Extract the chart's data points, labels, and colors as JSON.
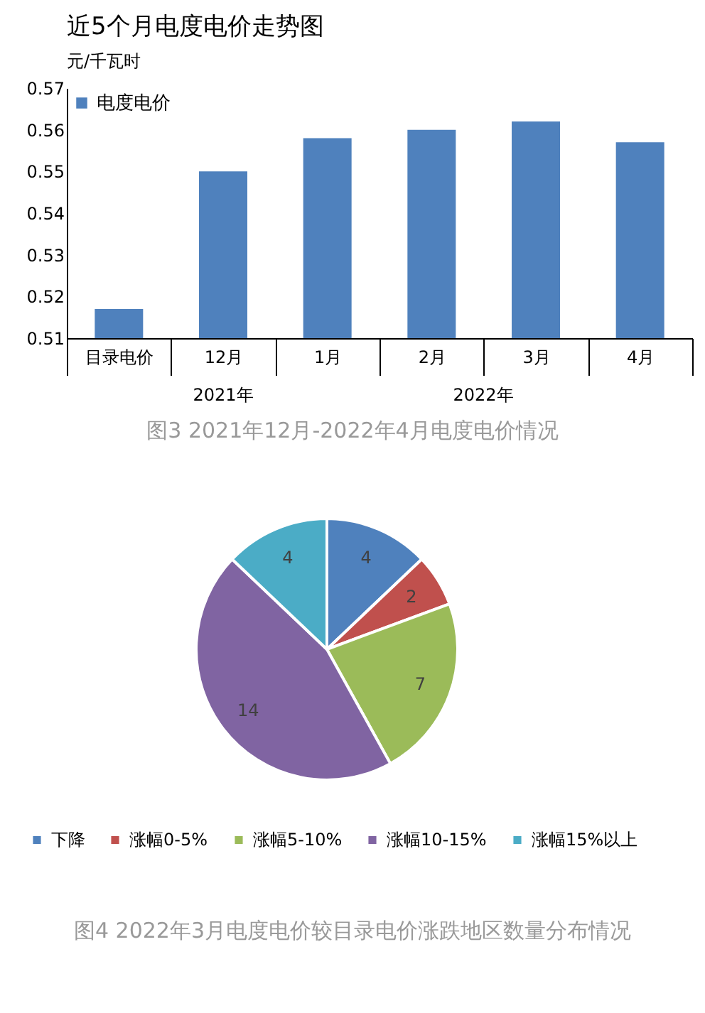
{
  "chart_data": [
    {
      "type": "bar",
      "title": "近5个月电度电价走势图",
      "ylabel": "元/千瓦时",
      "categories": [
        "目录电价",
        "12月",
        "1月",
        "2月",
        "3月",
        "4月"
      ],
      "series": [
        {
          "name": "电度电价",
          "color": "#4f81bd",
          "values": [
            0.517,
            0.55,
            0.558,
            0.56,
            0.562,
            0.557
          ]
        }
      ],
      "ylim": [
        0.51,
        0.57
      ],
      "yticks": [
        0.51,
        0.52,
        0.53,
        0.54,
        0.55,
        0.56,
        0.57
      ],
      "legend": "top left",
      "annotations": [
        "2021年",
        "2022年",
        "图3 2021年12月-2022年4月电度电价情况"
      ]
    },
    {
      "type": "pie",
      "categories": [
        "下降",
        "涨幅0-5%",
        "涨幅5-10%",
        "涨幅10-15%",
        "涨幅15%以上"
      ],
      "values": [
        4,
        2,
        7,
        14,
        4
      ],
      "colors": [
        "#4f81bd",
        "#c0504d",
        "#9bbb59",
        "#8064a2",
        "#4bacc6"
      ],
      "data_labels": true,
      "legend": "bottom",
      "annotations": [
        "图4 2022年3月电度电价较目录电价涨跌地区数量分布情况"
      ]
    }
  ]
}
